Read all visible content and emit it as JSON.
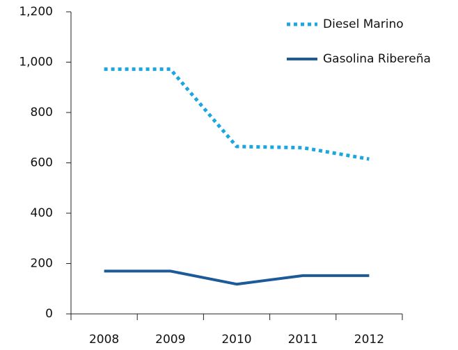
{
  "chart_data": {
    "type": "line",
    "categories": [
      "2008",
      "2009",
      "2010",
      "2011",
      "2012"
    ],
    "series": [
      {
        "name": "Diesel Marino",
        "color": "#1ba6e0",
        "dashed": true,
        "values": [
          972,
          972,
          665,
          660,
          615
        ]
      },
      {
        "name": "Gasolina Ribereña",
        "color": "#1c5a98",
        "dashed": false,
        "values": [
          170,
          170,
          118,
          152,
          152
        ]
      }
    ],
    "ylim": [
      0,
      1200
    ],
    "yticks": [
      0,
      200,
      400,
      600,
      800,
      {
        "value": 1000,
        "label": "1,000"
      },
      {
        "value": 1200,
        "label": "1,200"
      }
    ],
    "legend": "top-right"
  }
}
